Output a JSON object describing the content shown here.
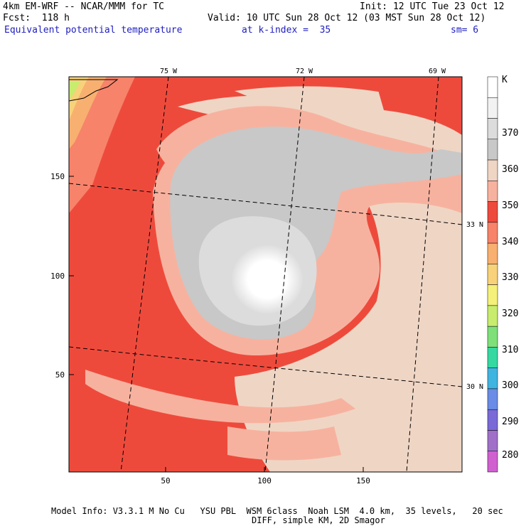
{
  "header": {
    "model": "4km EM-WRF -- NCAR/MMM for TC",
    "init": "Init: 12 UTC Tue 23 Oct 12",
    "fcst": "Fcst:  118 h",
    "valid": "Valid: 10 UTC Sun 28 Oct 12 (03 MST Sun 28 Oct 12)",
    "field": "Equivalent potential temperature",
    "kindex": "at k-index =  35",
    "sm": "sm= 6"
  },
  "map": {
    "x_ticks": [
      "50",
      "100",
      "150"
    ],
    "y_ticks": [
      "150",
      "100",
      "50"
    ],
    "lon_labels": [
      "75 W",
      "72 W",
      "69 W"
    ],
    "lat_labels": [
      "33 N",
      "30 N"
    ]
  },
  "colorbar": {
    "unit": "K",
    "levels": [
      "370",
      "360",
      "350",
      "340",
      "330",
      "320",
      "310",
      "300",
      "290",
      "280"
    ],
    "colors": [
      "#ffffff",
      "#f2f2f2",
      "#dcdcdc",
      "#c8c8c8",
      "#efd5c4",
      "#f7b29f",
      "#ee4a3c",
      "#f7836a",
      "#f8b070",
      "#f8d27a",
      "#f4f07a",
      "#c8ec6e",
      "#7fe07a",
      "#36d8a2",
      "#40b4e0",
      "#6a8ce6",
      "#7a6ad8",
      "#a070c8",
      "#d060d0"
    ]
  },
  "footer": {
    "line1": "Model Info: V3.3.1 M No Cu   YSU PBL  WSM 6class  Noah LSM  4.0 km,  35 levels,   20 sec",
    "line2": "DIFF, simple KM, 2D Smagor"
  }
}
